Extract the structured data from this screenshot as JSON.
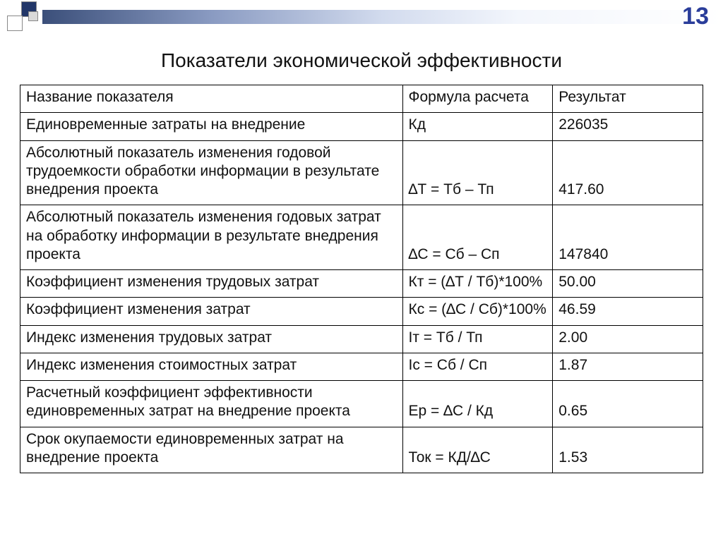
{
  "slide": {
    "number": "13",
    "title": "Показатели экономической эффективности",
    "decor": {
      "gradient_from": "#3b4f7a",
      "gradient_to": "#ffffff",
      "square_dark": "#223668",
      "square_light": "#ffffff",
      "square_grey": "#d9d9d9",
      "number_color": "#2a3d9a"
    }
  },
  "table": {
    "type": "table",
    "border_color": "#000000",
    "background_color": "#ffffff",
    "font_family": "Arial",
    "header_fontsize": 21,
    "cell_fontsize": 21,
    "columns": [
      {
        "key": "name",
        "label": "Название показателя",
        "width_pct": 56,
        "align": "left"
      },
      {
        "key": "formula",
        "label": "Формула расчета",
        "width_pct": 22,
        "align": "left"
      },
      {
        "key": "result",
        "label": "Результат",
        "width_pct": 22,
        "align": "left"
      }
    ],
    "rows": [
      {
        "name": "Единовременные затраты на внедрение",
        "formula": "Кд",
        "result": "226035",
        "result_bold": false
      },
      {
        "name": "Абсолютный показатель изменения годовой трудоемкости обработки информации в результате внедрения проекта",
        "formula": "∆Т = Тб – Тп",
        "result": "417.60",
        "result_bold": false
      },
      {
        "name": "Абсолютный показатель изменения годовых затрат на обработку информации в результате внедрения проекта",
        "formula": "∆С = Сб – Сп",
        "result": "147840",
        "result_bold": false
      },
      {
        "name": "Коэффициент изменения трудовых затрат",
        "formula": "Кт = (∆Т / Тб)*100%",
        "result": "50.00",
        "result_bold": false
      },
      {
        "name": "Коэффициент изменения затрат",
        "formula": "Кс = (∆С / Сб)*100%",
        "result": "46.59",
        "result_bold": false
      },
      {
        "name": "Индекс изменения трудовых затрат",
        "formula": "Iт = Тб / Тп",
        "result": "2.00",
        "result_bold": false
      },
      {
        "name": "Индекс изменения стоимостных затрат",
        "formula": "Iс = Сб / Сп",
        "result": "1.87",
        "result_bold": false
      },
      {
        "name": "Расчетный коэффициент эффективности единовременных затрат на внедрение проекта",
        "formula": "Ер = ∆С / Кд",
        "result": "0.65",
        "result_bold": false
      },
      {
        "name": "Срок окупаемости единовременных затрат на внедрение проекта",
        "formula": "Ток = КД/∆С",
        "result": "1.53",
        "result_bold": true
      }
    ]
  }
}
